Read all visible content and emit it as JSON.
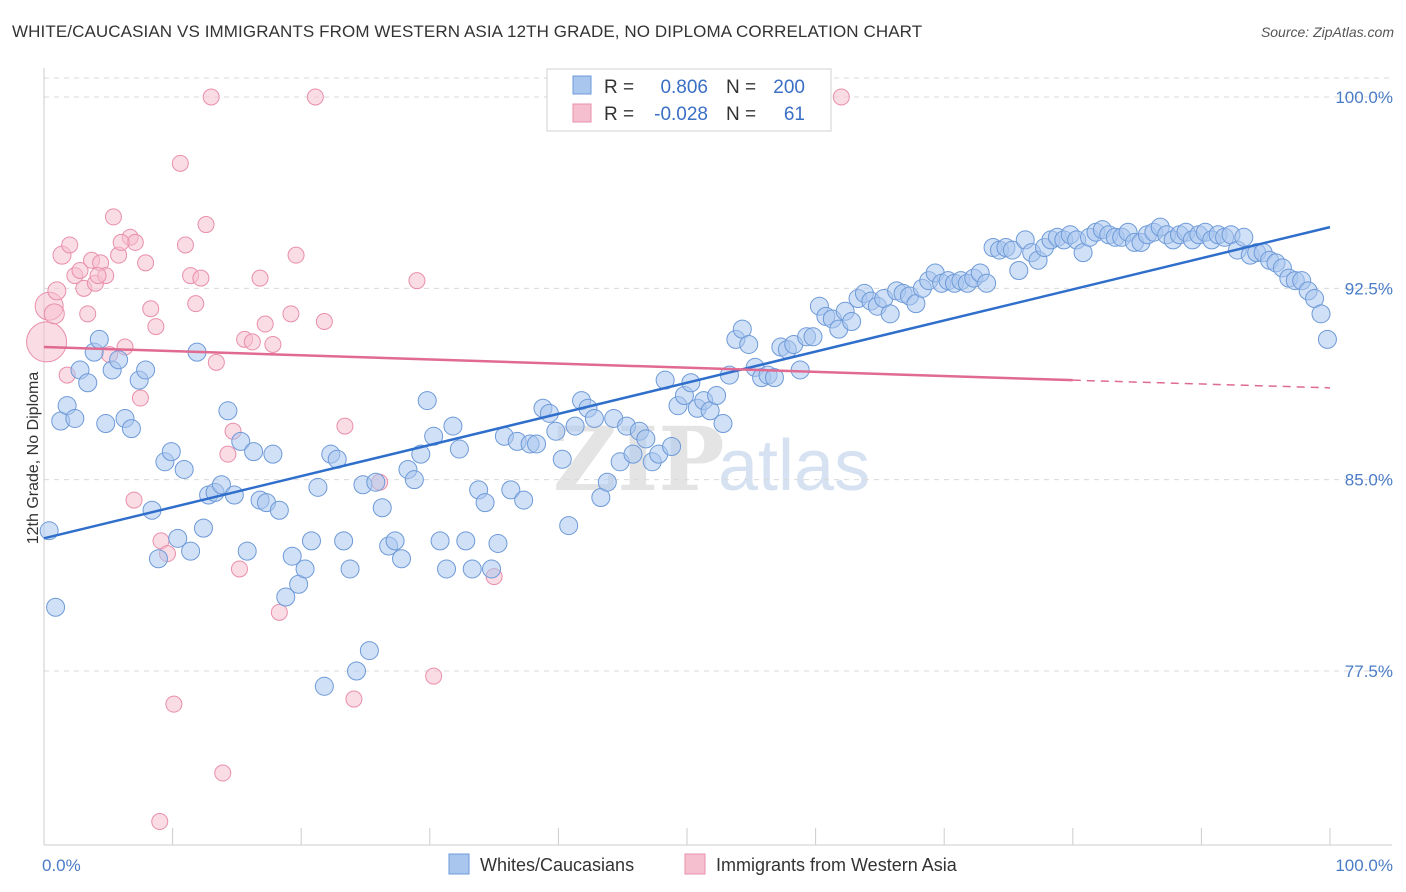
{
  "title": "WHITE/CAUCASIAN VS IMMIGRANTS FROM WESTERN ASIA 12TH GRADE, NO DIPLOMA CORRELATION CHART",
  "source": "Source: ZipAtlas.com",
  "watermark": {
    "zip": "ZIP",
    "atlas": "atlas"
  },
  "colors": {
    "blue_fill": "#a9c6ef",
    "blue_stroke": "#6e9ad8",
    "blue_line": "#2f6fcb",
    "pink_fill": "#f6bfd0",
    "pink_stroke": "#e98fab",
    "pink_line": "#e06a92",
    "tick_text": "#4a7cc7",
    "grid": "#d9d9d9"
  },
  "legend": {
    "rows": [
      {
        "r_label": "R =",
        "r_value": "0.806",
        "n_label": "N =",
        "n_value": "200"
      },
      {
        "r_label": "R =",
        "r_value": "-0.028",
        "n_label": "N =",
        "n_value": "61"
      }
    ]
  },
  "chart_data": {
    "type": "scatter",
    "title": "WHITE/CAUCASIAN VS IMMIGRANTS FROM WESTERN ASIA 12TH GRADE, NO DIPLOMA CORRELATION CHART",
    "xlabel": "",
    "ylabel": "12th Grade, No Diploma",
    "xlim": [
      0,
      100
    ],
    "ylim": [
      70.6,
      101.5
    ],
    "x_tick_labels": [
      "0.0%",
      "100.0%"
    ],
    "y_ticks": [
      77.5,
      85.0,
      92.5,
      100.0
    ],
    "y_tick_labels": [
      "77.5%",
      "85.0%",
      "92.5%",
      "100.0%"
    ],
    "grid": true,
    "legend_position": "top-center",
    "series": [
      {
        "name": "Whites/Caucasians",
        "r": 0.806,
        "n": 200,
        "trend": {
          "x": [
            0,
            100
          ],
          "y": [
            82.7,
            94.9
          ]
        },
        "points": [
          [
            0.4,
            83.0
          ],
          [
            0.9,
            80.0
          ],
          [
            1.3,
            87.3
          ],
          [
            1.8,
            87.9
          ],
          [
            2.4,
            87.4
          ],
          [
            2.8,
            89.3
          ],
          [
            3.4,
            88.8
          ],
          [
            3.9,
            90.0
          ],
          [
            4.3,
            90.5
          ],
          [
            4.8,
            87.2
          ],
          [
            5.3,
            89.3
          ],
          [
            5.8,
            89.7
          ],
          [
            6.3,
            87.4
          ],
          [
            6.8,
            87.0
          ],
          [
            7.4,
            88.9
          ],
          [
            7.9,
            89.3
          ],
          [
            8.4,
            83.8
          ],
          [
            8.9,
            81.9
          ],
          [
            9.4,
            85.7
          ],
          [
            9.9,
            86.1
          ],
          [
            10.4,
            82.7
          ],
          [
            10.9,
            85.4
          ],
          [
            11.4,
            82.2
          ],
          [
            11.9,
            90.0
          ],
          [
            12.4,
            83.1
          ],
          [
            12.8,
            84.4
          ],
          [
            13.3,
            84.5
          ],
          [
            13.8,
            84.8
          ],
          [
            14.3,
            87.7
          ],
          [
            14.8,
            84.4
          ],
          [
            15.3,
            86.5
          ],
          [
            15.8,
            82.2
          ],
          [
            16.3,
            86.1
          ],
          [
            16.8,
            84.2
          ],
          [
            17.3,
            84.1
          ],
          [
            17.8,
            86.0
          ],
          [
            18.3,
            83.8
          ],
          [
            18.8,
            80.4
          ],
          [
            19.3,
            82.0
          ],
          [
            19.8,
            80.9
          ],
          [
            20.3,
            81.5
          ],
          [
            20.8,
            82.6
          ],
          [
            21.3,
            84.7
          ],
          [
            21.8,
            76.9
          ],
          [
            22.3,
            86.0
          ],
          [
            22.8,
            85.8
          ],
          [
            23.3,
            82.6
          ],
          [
            23.8,
            81.5
          ],
          [
            24.3,
            77.5
          ],
          [
            24.8,
            84.8
          ],
          [
            25.3,
            78.3
          ],
          [
            25.8,
            84.9
          ],
          [
            26.3,
            83.9
          ],
          [
            26.8,
            82.4
          ],
          [
            27.3,
            82.6
          ],
          [
            27.8,
            81.9
          ],
          [
            28.3,
            85.4
          ],
          [
            28.8,
            85.0
          ],
          [
            29.3,
            86.0
          ],
          [
            29.8,
            88.1
          ],
          [
            30.3,
            86.7
          ],
          [
            30.8,
            82.6
          ],
          [
            31.3,
            81.5
          ],
          [
            31.8,
            87.1
          ],
          [
            32.3,
            86.2
          ],
          [
            32.8,
            82.6
          ],
          [
            33.3,
            81.5
          ],
          [
            33.8,
            84.6
          ],
          [
            34.3,
            84.1
          ],
          [
            34.8,
            81.5
          ],
          [
            35.3,
            82.5
          ],
          [
            35.8,
            86.7
          ],
          [
            36.3,
            84.6
          ],
          [
            36.8,
            86.5
          ],
          [
            37.3,
            84.2
          ],
          [
            37.8,
            86.4
          ],
          [
            38.3,
            86.4
          ],
          [
            38.8,
            87.8
          ],
          [
            39.3,
            87.6
          ],
          [
            39.8,
            86.9
          ],
          [
            40.3,
            85.8
          ],
          [
            40.8,
            83.2
          ],
          [
            41.3,
            87.1
          ],
          [
            41.8,
            88.1
          ],
          [
            42.3,
            87.8
          ],
          [
            42.8,
            87.4
          ],
          [
            43.3,
            84.3
          ],
          [
            43.8,
            84.9
          ],
          [
            44.3,
            87.4
          ],
          [
            44.8,
            85.7
          ],
          [
            45.3,
            87.1
          ],
          [
            45.8,
            86.0
          ],
          [
            46.3,
            86.9
          ],
          [
            46.8,
            86.6
          ],
          [
            47.3,
            85.7
          ],
          [
            47.8,
            86.0
          ],
          [
            48.3,
            88.9
          ],
          [
            48.8,
            86.3
          ],
          [
            49.3,
            87.9
          ],
          [
            49.8,
            88.3
          ],
          [
            50.3,
            88.8
          ],
          [
            50.8,
            87.8
          ],
          [
            51.3,
            88.1
          ],
          [
            51.8,
            87.7
          ],
          [
            52.3,
            88.3
          ],
          [
            52.8,
            87.2
          ],
          [
            53.3,
            89.1
          ],
          [
            53.8,
            90.5
          ],
          [
            54.3,
            90.9
          ],
          [
            54.8,
            90.3
          ],
          [
            55.3,
            89.4
          ],
          [
            55.8,
            89.0
          ],
          [
            56.3,
            89.1
          ],
          [
            56.8,
            89.0
          ],
          [
            57.3,
            90.2
          ],
          [
            57.8,
            90.1
          ],
          [
            58.3,
            90.3
          ],
          [
            58.8,
            89.3
          ],
          [
            59.3,
            90.6
          ],
          [
            59.8,
            90.6
          ],
          [
            60.3,
            91.8
          ],
          [
            60.8,
            91.4
          ],
          [
            61.3,
            91.3
          ],
          [
            61.8,
            90.9
          ],
          [
            62.3,
            91.6
          ],
          [
            62.8,
            91.2
          ],
          [
            63.3,
            92.1
          ],
          [
            63.8,
            92.3
          ],
          [
            64.3,
            92.0
          ],
          [
            64.8,
            91.8
          ],
          [
            65.3,
            92.1
          ],
          [
            65.8,
            91.5
          ],
          [
            66.3,
            92.4
          ],
          [
            66.8,
            92.3
          ],
          [
            67.3,
            92.2
          ],
          [
            67.8,
            91.9
          ],
          [
            68.3,
            92.5
          ],
          [
            68.8,
            92.8
          ],
          [
            69.3,
            93.1
          ],
          [
            69.8,
            92.7
          ],
          [
            70.3,
            92.8
          ],
          [
            70.8,
            92.7
          ],
          [
            71.3,
            92.8
          ],
          [
            71.8,
            92.7
          ],
          [
            72.3,
            92.9
          ],
          [
            72.8,
            93.1
          ],
          [
            73.3,
            92.7
          ],
          [
            73.8,
            94.1
          ],
          [
            74.3,
            94.0
          ],
          [
            74.8,
            94.1
          ],
          [
            75.3,
            94.0
          ],
          [
            75.8,
            93.2
          ],
          [
            76.3,
            94.4
          ],
          [
            76.8,
            93.9
          ],
          [
            77.3,
            93.6
          ],
          [
            77.8,
            94.1
          ],
          [
            78.3,
            94.4
          ],
          [
            78.8,
            94.5
          ],
          [
            79.3,
            94.4
          ],
          [
            79.8,
            94.6
          ],
          [
            80.3,
            94.4
          ],
          [
            80.8,
            93.9
          ],
          [
            81.3,
            94.5
          ],
          [
            81.8,
            94.7
          ],
          [
            82.3,
            94.8
          ],
          [
            82.8,
            94.6
          ],
          [
            83.3,
            94.5
          ],
          [
            83.8,
            94.5
          ],
          [
            84.3,
            94.7
          ],
          [
            84.8,
            94.3
          ],
          [
            85.3,
            94.3
          ],
          [
            85.8,
            94.6
          ],
          [
            86.3,
            94.7
          ],
          [
            86.8,
            94.9
          ],
          [
            87.3,
            94.6
          ],
          [
            87.8,
            94.4
          ],
          [
            88.3,
            94.6
          ],
          [
            88.8,
            94.7
          ],
          [
            89.3,
            94.4
          ],
          [
            89.8,
            94.6
          ],
          [
            90.3,
            94.7
          ],
          [
            90.8,
            94.4
          ],
          [
            91.3,
            94.6
          ],
          [
            91.8,
            94.5
          ],
          [
            92.3,
            94.6
          ],
          [
            92.8,
            94.0
          ],
          [
            93.3,
            94.5
          ],
          [
            93.8,
            93.8
          ],
          [
            94.3,
            93.9
          ],
          [
            94.8,
            93.9
          ],
          [
            95.3,
            93.6
          ],
          [
            95.8,
            93.5
          ],
          [
            96.3,
            93.3
          ],
          [
            96.8,
            92.9
          ],
          [
            97.3,
            92.8
          ],
          [
            97.8,
            92.8
          ],
          [
            98.3,
            92.4
          ],
          [
            98.8,
            92.1
          ],
          [
            99.3,
            91.5
          ],
          [
            99.8,
            90.5
          ]
        ]
      },
      {
        "name": "Immigrants from Western Asia",
        "r": -0.028,
        "n": 61,
        "trend": {
          "x": [
            0,
            80
          ],
          "y": [
            90.2,
            88.9
          ]
        },
        "trend_dashed": {
          "x": [
            80,
            100
          ],
          "y": [
            88.9,
            88.6
          ]
        },
        "points": [
          [
            0.2,
            90.4,
            20
          ],
          [
            0.4,
            91.8,
            14
          ],
          [
            0.8,
            91.5,
            10
          ],
          [
            1.0,
            92.4,
            9
          ],
          [
            1.4,
            93.8,
            9
          ],
          [
            1.8,
            89.1,
            8
          ],
          [
            2.0,
            94.2,
            8
          ],
          [
            2.4,
            93.0,
            8
          ],
          [
            2.8,
            93.2,
            8
          ],
          [
            3.1,
            92.5,
            8
          ],
          [
            3.4,
            91.5,
            8
          ],
          [
            3.7,
            93.6,
            8
          ],
          [
            4.0,
            92.7,
            8
          ],
          [
            4.4,
            93.5,
            8
          ],
          [
            4.8,
            93.0,
            8
          ],
          [
            5.1,
            89.9,
            8
          ],
          [
            5.4,
            95.3,
            8
          ],
          [
            5.8,
            93.8,
            8
          ],
          [
            6.3,
            90.2,
            8
          ],
          [
            6.7,
            94.5,
            8
          ],
          [
            7.1,
            94.3,
            8
          ],
          [
            7.5,
            88.2,
            8
          ],
          [
            7.9,
            93.5,
            8
          ],
          [
            8.3,
            91.7,
            8
          ],
          [
            8.7,
            91.0,
            8
          ],
          [
            9.1,
            82.6,
            8
          ],
          [
            9.6,
            82.1,
            8
          ],
          [
            10.1,
            76.2,
            8
          ],
          [
            10.6,
            97.4,
            8
          ],
          [
            11.0,
            94.2,
            8
          ],
          [
            11.4,
            93.0,
            8
          ],
          [
            11.8,
            91.9,
            8
          ],
          [
            12.2,
            92.9,
            8
          ],
          [
            12.6,
            95.0,
            8
          ],
          [
            13.0,
            100.0,
            8
          ],
          [
            13.4,
            89.6,
            8
          ],
          [
            13.9,
            73.5,
            8
          ],
          [
            14.3,
            86.0,
            8
          ],
          [
            14.7,
            86.9,
            8
          ],
          [
            15.2,
            81.5,
            8
          ],
          [
            15.6,
            90.5,
            8
          ],
          [
            16.2,
            90.4,
            8
          ],
          [
            16.8,
            92.9,
            8
          ],
          [
            17.2,
            91.1,
            8
          ],
          [
            17.8,
            90.3,
            8
          ],
          [
            18.3,
            79.8,
            8
          ],
          [
            19.2,
            91.5,
            8
          ],
          [
            19.6,
            93.8,
            8
          ],
          [
            21.1,
            100.0,
            8
          ],
          [
            21.8,
            91.2,
            8
          ],
          [
            23.4,
            87.1,
            8
          ],
          [
            24.1,
            76.4,
            8
          ],
          [
            26.1,
            84.9,
            8
          ],
          [
            29.0,
            92.8,
            8
          ],
          [
            30.3,
            77.3,
            8
          ],
          [
            35.0,
            81.2,
            8
          ],
          [
            62.0,
            100.0,
            8
          ],
          [
            6.0,
            94.3,
            8
          ],
          [
            4.2,
            93.0,
            8
          ],
          [
            9.0,
            71.6,
            8
          ],
          [
            7.0,
            84.2,
            8
          ]
        ]
      }
    ]
  }
}
